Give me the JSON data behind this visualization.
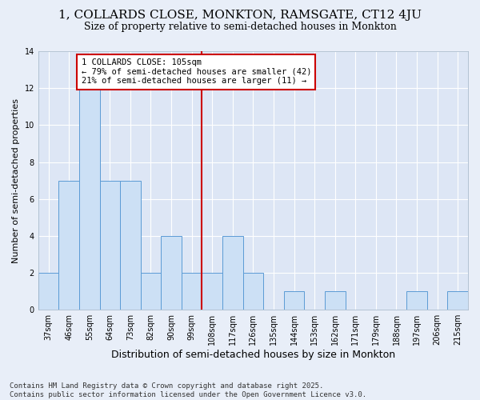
{
  "title": "1, COLLARDS CLOSE, MONKTON, RAMSGATE, CT12 4JU",
  "subtitle": "Size of property relative to semi-detached houses in Monkton",
  "xlabel": "Distribution of semi-detached houses by size in Monkton",
  "ylabel": "Number of semi-detached properties",
  "categories": [
    "37sqm",
    "46sqm",
    "55sqm",
    "64sqm",
    "73sqm",
    "82sqm",
    "90sqm",
    "99sqm",
    "108sqm",
    "117sqm",
    "126sqm",
    "135sqm",
    "144sqm",
    "153sqm",
    "162sqm",
    "171sqm",
    "179sqm",
    "188sqm",
    "197sqm",
    "206sqm",
    "215sqm"
  ],
  "values": [
    2,
    7,
    12,
    7,
    7,
    2,
    4,
    2,
    2,
    4,
    2,
    0,
    1,
    0,
    1,
    0,
    0,
    0,
    1,
    0,
    1
  ],
  "bar_color": "#cce0f5",
  "bar_edge_color": "#5b9bd5",
  "vline_index": 8,
  "vline_color": "#cc0000",
  "annotation_text": "1 COLLARDS CLOSE: 105sqm\n← 79% of semi-detached houses are smaller (42)\n21% of semi-detached houses are larger (11) →",
  "annotation_box_edge": "#cc0000",
  "ylim": [
    0,
    14
  ],
  "yticks": [
    0,
    2,
    4,
    6,
    8,
    10,
    12,
    14
  ],
  "background_color": "#e8eef8",
  "plot_bg_color": "#dde6f5",
  "grid_color": "#ffffff",
  "footer": "Contains HM Land Registry data © Crown copyright and database right 2025.\nContains public sector information licensed under the Open Government Licence v3.0.",
  "title_fontsize": 11,
  "subtitle_fontsize": 9,
  "xlabel_fontsize": 9,
  "ylabel_fontsize": 8,
  "tick_fontsize": 7,
  "annotation_fontsize": 7.5,
  "footer_fontsize": 6.5
}
